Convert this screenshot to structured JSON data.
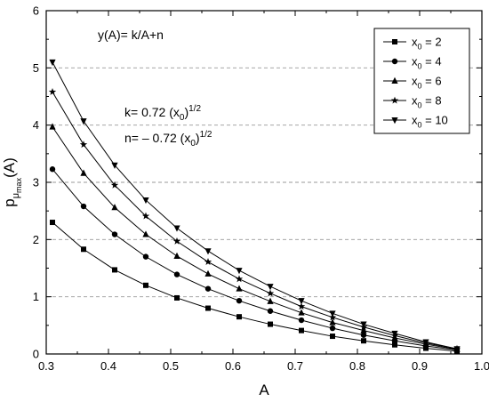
{
  "chart_data": {
    "type": "line",
    "xlabel": "A",
    "ylabel_main": "p",
    "ylabel_sub": "μ",
    "ylabel_subsub": "max",
    "ylabel_tail": "(A)",
    "xlim": [
      0.3,
      1.0
    ],
    "ylim": [
      0,
      6
    ],
    "x_ticks": [
      "0.3",
      "0.4",
      "0.5",
      "0.6",
      "0.7",
      "0.8",
      "0.9",
      "1.0"
    ],
    "y_ticks": [
      "0",
      "1",
      "2",
      "3",
      "4",
      "5",
      "6"
    ],
    "grid": "dashed horizontal",
    "legend_position": "top-right",
    "annotations": {
      "formula": "y(A)= k/A+n",
      "k_text": "k= 0.72 (x",
      "k_sub": "0",
      "k_close": ")",
      "k_sup": "1/2",
      "n_text": "n= – 0.72 (x",
      "n_sub": "0",
      "n_close": ")",
      "n_sup": "1/2"
    },
    "x": [
      0.31,
      0.36,
      0.41,
      0.46,
      0.51,
      0.56,
      0.61,
      0.66,
      0.71,
      0.76,
      0.81,
      0.86,
      0.91,
      0.96
    ],
    "series": [
      {
        "legend_var": "x",
        "legend_sub": "0",
        "legend_value": " = 2",
        "marker": "square",
        "values": [
          2.3,
          1.83,
          1.47,
          1.2,
          0.98,
          0.8,
          0.65,
          0.52,
          0.41,
          0.31,
          0.23,
          0.16,
          0.1,
          0.05
        ]
      },
      {
        "legend_var": "x",
        "legend_sub": "0",
        "legend_value": " = 4",
        "marker": "circle",
        "values": [
          3.23,
          2.58,
          2.09,
          1.7,
          1.39,
          1.14,
          0.93,
          0.75,
          0.59,
          0.45,
          0.33,
          0.23,
          0.14,
          0.07
        ]
      },
      {
        "legend_var": "x",
        "legend_sub": "0",
        "legend_value": " = 6",
        "marker": "triangle-up",
        "values": [
          3.97,
          3.16,
          2.56,
          2.09,
          1.71,
          1.4,
          1.14,
          0.92,
          0.72,
          0.55,
          0.41,
          0.28,
          0.17,
          0.08
        ]
      },
      {
        "legend_var": "x",
        "legend_sub": "0",
        "legend_value": " = 8",
        "marker": "star",
        "values": [
          4.58,
          3.66,
          2.95,
          2.41,
          1.97,
          1.61,
          1.31,
          1.06,
          0.83,
          0.64,
          0.47,
          0.32,
          0.19,
          0.09
        ]
      },
      {
        "legend_var": "x",
        "legend_sub": "0",
        "legend_value": " = 10",
        "marker": "triangle-down",
        "values": [
          5.1,
          4.07,
          3.3,
          2.69,
          2.2,
          1.8,
          1.46,
          1.18,
          0.93,
          0.71,
          0.52,
          0.36,
          0.21,
          0.09
        ]
      }
    ]
  }
}
